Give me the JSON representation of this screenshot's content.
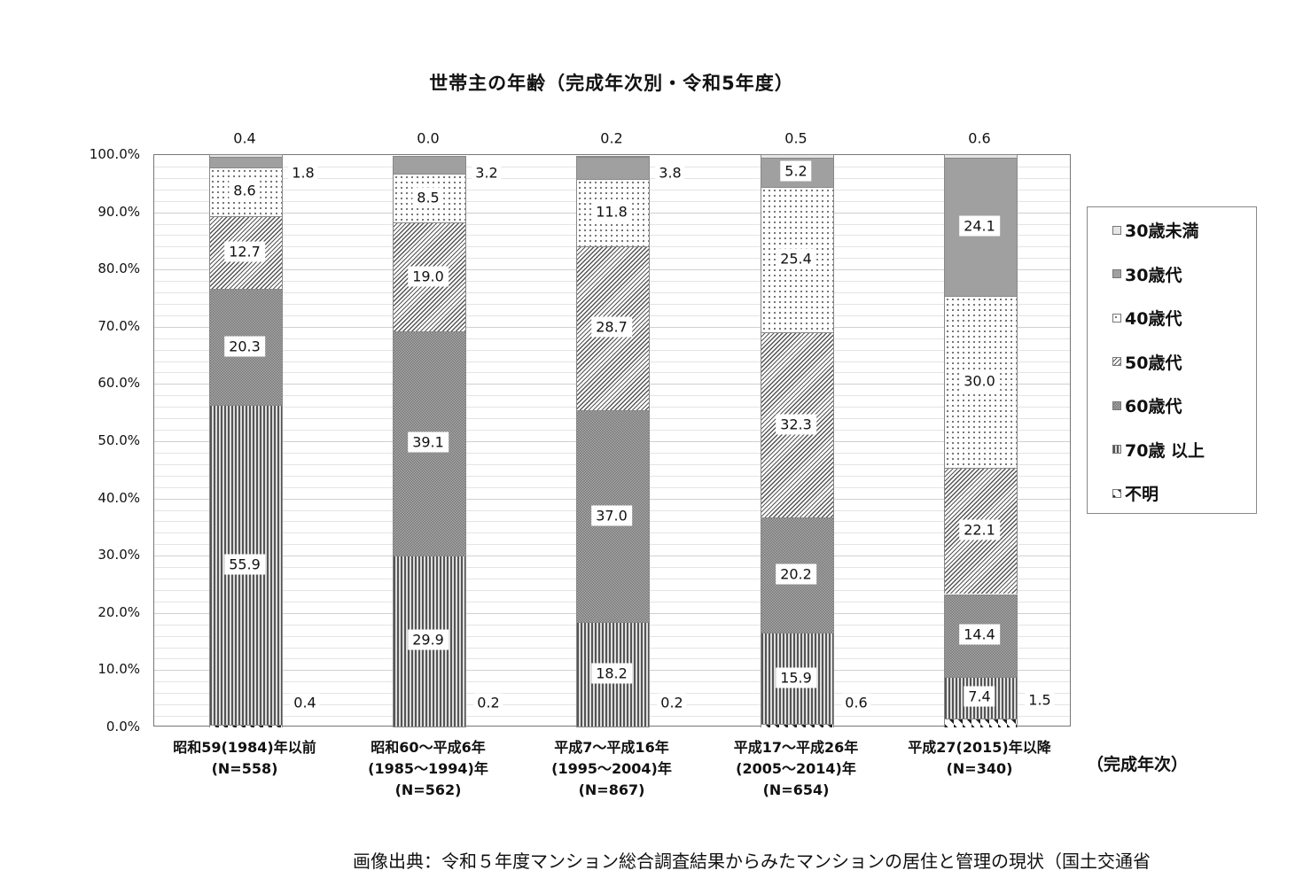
{
  "chart_data": {
    "type": "bar",
    "stacked": true,
    "percent_stacked": true,
    "title": "世帯主の年齢（完成年次別・令和5年度）",
    "xlabel": "（完成年次）",
    "ylabel": "",
    "ylim": [
      0,
      100
    ],
    "yticks": [
      "0.0%",
      "10.0%",
      "20.0%",
      "30.0%",
      "40.0%",
      "50.0%",
      "60.0%",
      "70.0%",
      "80.0%",
      "90.0%",
      "100.0%"
    ],
    "grid": true,
    "legend_position": "right",
    "categories": [
      "昭和59(1984)年以前\n(N=558)",
      "昭和60〜平成6年\n(1985〜1994)年\n(N=562)",
      "平成7〜平成16年\n(1995〜2004)年\n(N=867)",
      "平成17〜平成26年\n(2005〜2014)年\n(N=654)",
      "平成27(2015)年以降\n(N=340)"
    ],
    "series": [
      {
        "name": "不明",
        "key": "unknown",
        "values": [
          0.4,
          0.2,
          0.2,
          0.6,
          1.5
        ]
      },
      {
        "name": "70歳 以上",
        "key": "70plus",
        "values": [
          55.9,
          29.9,
          18.2,
          15.9,
          7.4
        ]
      },
      {
        "name": "60歳代",
        "key": "60s",
        "values": [
          20.3,
          39.1,
          37.0,
          20.2,
          14.4
        ]
      },
      {
        "name": "50歳代",
        "key": "50s",
        "values": [
          12.7,
          19.0,
          28.7,
          32.3,
          22.1
        ]
      },
      {
        "name": "40歳代",
        "key": "40s",
        "values": [
          8.6,
          8.5,
          11.8,
          25.4,
          30.0
        ]
      },
      {
        "name": "30歳代",
        "key": "30s",
        "values": [
          1.8,
          3.2,
          3.8,
          5.2,
          24.1
        ]
      },
      {
        "name": "30歳未満",
        "key": "under30",
        "values": [
          0.4,
          0.0,
          0.2,
          0.5,
          0.6
        ]
      }
    ]
  },
  "title": "世帯主の年齢（完成年次別・令和5年度）",
  "x_unit": "（完成年次）",
  "legend": [
    {
      "label": "30歳未満",
      "key": "under30"
    },
    {
      "label": "30歳代",
      "key": "30s"
    },
    {
      "label": "40歳代",
      "key": "40s"
    },
    {
      "label": "50歳代",
      "key": "50s"
    },
    {
      "label": "60歳代",
      "key": "60s"
    },
    {
      "label": "70歳 以上",
      "key": "70plus"
    },
    {
      "label": "不明",
      "key": "unknown"
    }
  ],
  "source": "画像出典：令和５年度マンション総合調査結果からみたマンションの居住と管理の現状（国土交通省"
}
